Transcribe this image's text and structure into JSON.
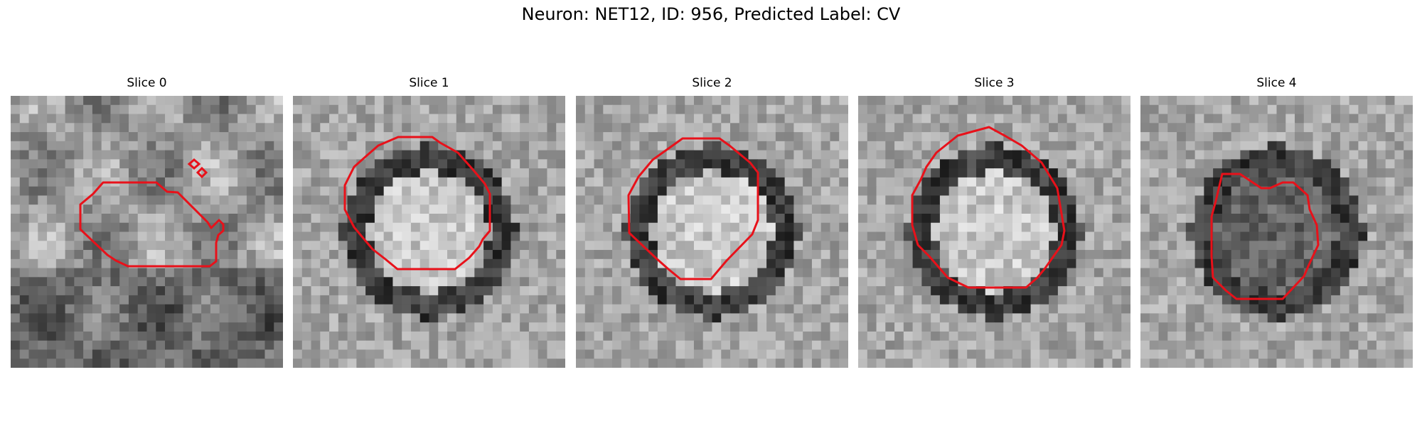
{
  "figure_title": "Neuron: NET12, ID: 956, Predicted Label: CV",
  "contour_color": "#e8111a",
  "slices": [
    {
      "title": "Slice 0"
    },
    {
      "title": "Slice 1"
    },
    {
      "title": "Slice 2"
    },
    {
      "title": "Slice 3"
    },
    {
      "title": "Slice 4"
    }
  ]
}
